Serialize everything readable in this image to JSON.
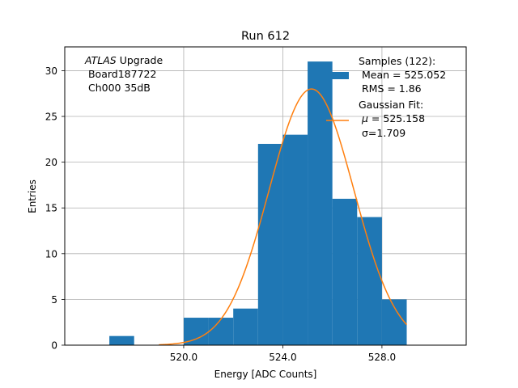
{
  "chart_data": {
    "type": "bar",
    "title": "Run 612",
    "xlabel": "Energy [ADC Counts]",
    "ylabel": "Entries",
    "xlim": [
      515.2,
      531.4
    ],
    "ylim": [
      0,
      32.6
    ],
    "grid": true,
    "xticks": [
      520.0,
      524.0,
      528.0
    ],
    "xtick_labels": [
      "520.0",
      "524.0",
      "528.0"
    ],
    "yticks": [
      0,
      5,
      10,
      15,
      20,
      25,
      30
    ],
    "ytick_labels": [
      "0",
      "5",
      "10",
      "15",
      "20",
      "25",
      "30"
    ],
    "bins": [
      {
        "x0": 517.0,
        "x1": 518.0,
        "count": 1
      },
      {
        "x0": 518.0,
        "x1": 519.0,
        "count": 0
      },
      {
        "x0": 519.0,
        "x1": 520.0,
        "count": 0
      },
      {
        "x0": 520.0,
        "x1": 521.0,
        "count": 3
      },
      {
        "x0": 521.0,
        "x1": 522.0,
        "count": 3
      },
      {
        "x0": 522.0,
        "x1": 523.0,
        "count": 4
      },
      {
        "x0": 523.0,
        "x1": 524.0,
        "count": 22
      },
      {
        "x0": 524.0,
        "x1": 525.0,
        "count": 23
      },
      {
        "x0": 525.0,
        "x1": 526.0,
        "count": 31
      },
      {
        "x0": 526.0,
        "x1": 527.0,
        "count": 16
      },
      {
        "x0": 527.0,
        "x1": 528.0,
        "count": 14
      },
      {
        "x0": 528.0,
        "x1": 529.0,
        "count": 5
      }
    ],
    "fit": {
      "type": "gaussian",
      "mu": 525.158,
      "sigma": 1.709,
      "amplitude": 28.0,
      "x_range": [
        519.0,
        529.0
      ]
    },
    "colors": {
      "bars": "#1f77b4",
      "fit_line": "#ff7f0e",
      "grid": "#b0b0b0"
    },
    "legend": {
      "position": "top-right",
      "samples_title": "Samples (122):",
      "samples_mean": " Mean = 525.052",
      "samples_rms": " RMS = 1.86",
      "fit_title": "Gaussian Fit:",
      "fit_mu_symbol": "μ",
      "fit_mu_text": " = 525.158",
      "fit_sigma": "σ=1.709"
    },
    "annotation": {
      "position": "top-left",
      "experiment": "ATLAS",
      "experiment_suffix": " Upgrade",
      "board": " Board187722",
      "channel": " Ch000 35dB"
    }
  }
}
